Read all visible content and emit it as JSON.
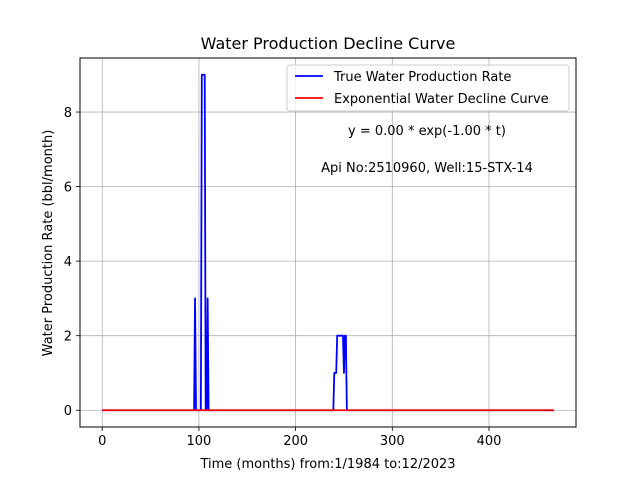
{
  "chart_data": {
    "type": "line",
    "title": "Water Production Decline Curve",
    "xlabel": "Time (months) from:1/1984 to:12/2023",
    "ylabel": "Water Production Rate (bbl/month)",
    "xlim": [
      -23,
      490
    ],
    "ylim": [
      -0.45,
      9.45
    ],
    "xticks": [
      0,
      100,
      200,
      300,
      400
    ],
    "yticks": [
      0,
      2,
      4,
      6,
      8
    ],
    "grid": true,
    "legend_position": "top-right",
    "annotations": [
      "y = 0.00 * exp(-1.00 * t)",
      "Api No:2510960, Well:15-STX-14"
    ],
    "series": [
      {
        "name": "True Water Production Rate",
        "color": "#0000ff",
        "x": [
          0,
          95,
          96,
          97,
          98,
          99,
          100,
          101,
          102,
          103,
          104,
          105,
          106,
          107,
          108,
          109,
          110,
          111,
          112,
          113,
          239,
          240,
          241,
          242,
          243,
          244,
          245,
          246,
          247,
          248,
          249,
          250,
          251,
          252,
          253,
          254,
          255,
          256,
          467
        ],
        "y": [
          0,
          0,
          3,
          0,
          0,
          0,
          0,
          0,
          0,
          9,
          9,
          9,
          9,
          0,
          0,
          3,
          0,
          0,
          0,
          0,
          0,
          1,
          1,
          1,
          2,
          2,
          2,
          2,
          2,
          2,
          2,
          1,
          2,
          2,
          0,
          0,
          0,
          0,
          0
        ]
      },
      {
        "name": "Exponential Water Decline Curve",
        "color": "#ff0000",
        "x": [
          0,
          467
        ],
        "y": [
          0,
          0
        ]
      }
    ]
  }
}
